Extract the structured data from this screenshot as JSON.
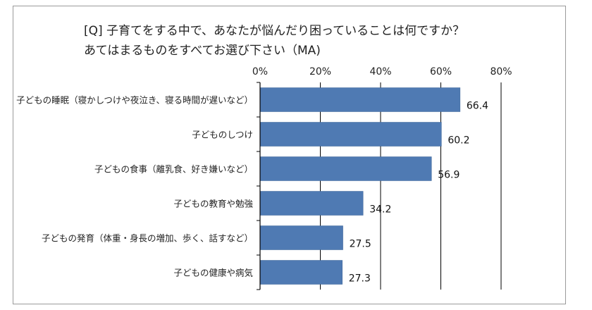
{
  "chart_data": {
    "type": "bar",
    "orientation": "horizontal",
    "title": "[Q] 子育てをする中で、あなたが悩んだり困っていることは何ですか？",
    "subtitle": "あてはまるものをすべてお選び下さい（MA)",
    "categories": [
      "子どもの睡眠（寝かしつけや夜泣き、寝る時間が遅いなど）",
      "子どものしつけ",
      "子どもの食事（離乳食、好き嫌いなど）",
      "子どもの教育や勉強",
      "子どもの発育（体重・身長の増加、歩く、話すなど）",
      "子どもの健康や病気"
    ],
    "values": [
      66.4,
      60.2,
      56.9,
      34.2,
      27.5,
      27.3
    ],
    "value_labels": [
      "66.4",
      "60.2",
      "56.9",
      "34.2",
      "27.5",
      "27.3"
    ],
    "xlim": [
      0,
      80
    ],
    "xticks": [
      0,
      20,
      40,
      60,
      80
    ],
    "xtick_labels": [
      "0%",
      "20%",
      "40%",
      "60%",
      "80%"
    ],
    "xaxis_position": "top",
    "grid": true,
    "legend": "none",
    "bar_color": "#4f7ab3"
  }
}
